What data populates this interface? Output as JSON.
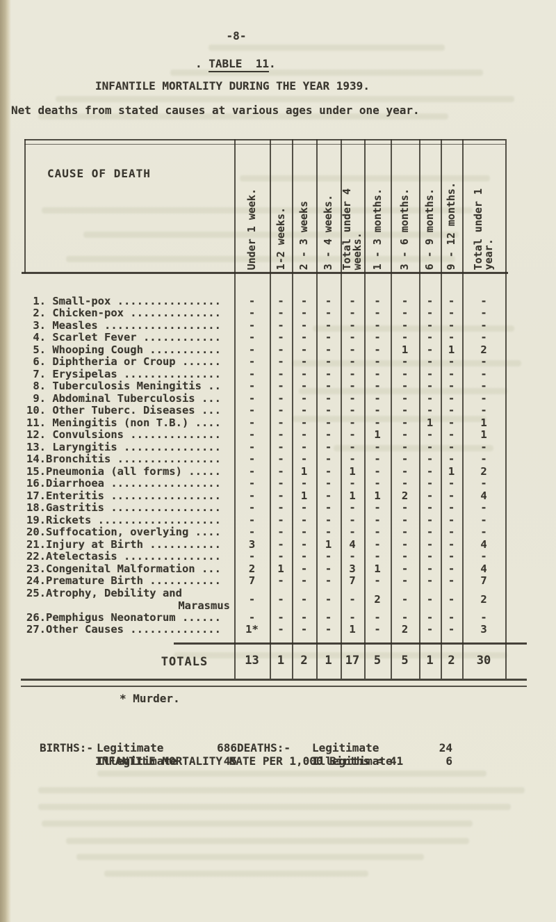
{
  "page": {
    "page_number": "-8-",
    "caption_pre": ". ",
    "caption_text": "TABLE  11",
    "caption_post": ".",
    "title": "INFANTILE MORTALITY DURING THE YEAR 1939.",
    "subtitle": "Net deaths from stated causes at various ages under one year."
  },
  "table": {
    "corner_header": "CAUSE OF DEATH",
    "columns": [
      "Under 1 week.",
      "1-2 weeks.",
      "2 - 3 weeks",
      "3 - 4 weeks.",
      "Total under 4\nweeks.",
      "1 - 3 months.",
      "3 - 6 months.",
      "6 - 9 months.",
      "9 - 12 months.",
      "Total under 1\nyear."
    ],
    "rows": [
      {
        "label": " 1. Small-pox",
        "values": [
          "-",
          "-",
          "-",
          "-",
          "-",
          "-",
          "-",
          "-",
          "-",
          "-"
        ]
      },
      {
        "label": " 2. Chicken-pox",
        "values": [
          "-",
          "-",
          "-",
          "-",
          "-",
          "-",
          "-",
          "-",
          "-",
          "-"
        ]
      },
      {
        "label": " 3. Measles",
        "values": [
          "-",
          "-",
          "-",
          "-",
          "-",
          "-",
          "-",
          "-",
          "-",
          "-"
        ]
      },
      {
        "label": " 4. Scarlet Fever",
        "values": [
          "-",
          "-",
          "-",
          "-",
          "-",
          "-",
          "-",
          "-",
          "-",
          "-"
        ]
      },
      {
        "label": " 5. Whooping Cough",
        "values": [
          "-",
          "-",
          "-",
          "-",
          "-",
          "-",
          "1",
          "-",
          "1",
          "2"
        ]
      },
      {
        "label": " 6. Diphtheria or Croup",
        "values": [
          "-",
          "-",
          "-",
          "-",
          "-",
          "-",
          "-",
          "-",
          "-",
          "-"
        ]
      },
      {
        "label": " 7. Erysipelas",
        "values": [
          "-",
          "-",
          "-",
          "-",
          "-",
          "-",
          "-",
          "-",
          "-",
          "-"
        ]
      },
      {
        "label": " 8. Tuberculosis Meningitis",
        "values": [
          "-",
          "-",
          "-",
          "-",
          "-",
          "-",
          "-",
          "-",
          "-",
          "-"
        ]
      },
      {
        "label": " 9. Abdominal Tuberculosis",
        "values": [
          "-",
          "-",
          "-",
          "-",
          "-",
          "-",
          "-",
          "-",
          "-",
          "-"
        ]
      },
      {
        "label": "10. Other Tuberc. Diseases",
        "values": [
          "-",
          "-",
          "-",
          "-",
          "-",
          "-",
          "-",
          "-",
          "-",
          "-"
        ]
      },
      {
        "label": "11. Meningitis (non T.B.)",
        "values": [
          "-",
          "-",
          "-",
          "-",
          "-",
          "-",
          "-",
          "1",
          "-",
          "1"
        ]
      },
      {
        "label": "12. Convulsions",
        "values": [
          "-",
          "-",
          "-",
          "-",
          "-",
          "1",
          "-",
          "-",
          "-",
          "1"
        ]
      },
      {
        "label": "13. Laryngitis",
        "values": [
          "-",
          "-",
          "-",
          "-",
          "-",
          "-",
          "-",
          "-",
          "-",
          "-"
        ]
      },
      {
        "label": "14.Bronchitis",
        "values": [
          "-",
          "-",
          "-",
          "-",
          "-",
          "-",
          "-",
          "-",
          "-",
          "-"
        ]
      },
      {
        "label": "15.Pneumonia (all forms)",
        "values": [
          "-",
          "-",
          "1",
          "-",
          "1",
          "-",
          "-",
          "-",
          "1",
          "2"
        ]
      },
      {
        "label": "16.Diarrhoea",
        "values": [
          "-",
          "-",
          "-",
          "-",
          "-",
          "-",
          "-",
          "-",
          "-",
          "-"
        ]
      },
      {
        "label": "17.Enteritis",
        "values": [
          "-",
          "-",
          "1",
          "-",
          "1",
          "1",
          "2",
          "-",
          "-",
          "4"
        ]
      },
      {
        "label": "18.Gastritis",
        "values": [
          "-",
          "-",
          "-",
          "-",
          "-",
          "-",
          "-",
          "-",
          "-",
          "-"
        ]
      },
      {
        "label": "19.Rickets",
        "values": [
          "-",
          "-",
          "-",
          "-",
          "-",
          "-",
          "-",
          "-",
          "-",
          "-"
        ]
      },
      {
        "label": "20.Suffocation, overlying",
        "values": [
          "-",
          "-",
          "-",
          "-",
          "-",
          "-",
          "-",
          "-",
          "-",
          "-"
        ]
      },
      {
        "label": "21.Injury at Birth",
        "values": [
          "3",
          "-",
          "-",
          "1",
          "4",
          "-",
          "-",
          "-",
          "-",
          "4"
        ]
      },
      {
        "label": "22.Atelectasis",
        "values": [
          "-",
          "-",
          "-",
          "-",
          "-",
          "-",
          "-",
          "-",
          "-",
          "-"
        ]
      },
      {
        "label": "23.Congenital Malformation",
        "values": [
          "2",
          "1",
          "-",
          "-",
          "3",
          "1",
          "-",
          "-",
          "-",
          "4"
        ]
      },
      {
        "label": "24.Premature Birth",
        "values": [
          "7",
          "-",
          "-",
          "-",
          "7",
          "-",
          "-",
          "-",
          "-",
          "7"
        ]
      },
      {
        "label": "25.Atrophy, Debility and",
        "label2": "Marasmus",
        "dots": false,
        "values": [
          "-",
          "-",
          "-",
          "-",
          "-",
          "2",
          "-",
          "-",
          "-",
          "2"
        ]
      },
      {
        "label": "26.Pemphigus Neonatorum",
        "values": [
          "-",
          "-",
          "-",
          "-",
          "-",
          "-",
          "-",
          "-",
          "-",
          "-"
        ]
      },
      {
        "label": "27.Other Causes",
        "values": [
          "1*",
          "-",
          "-",
          "-",
          "1",
          "-",
          "2",
          "-",
          "-",
          "3"
        ]
      }
    ],
    "totals_label": "TOTALS",
    "totals": [
      "13",
      "1",
      "2",
      "1",
      "17",
      "5",
      "5",
      "1",
      "2",
      "30"
    ]
  },
  "footnote": "* Murder.",
  "births": {
    "heading": "BIRTHS:-",
    "items": [
      {
        "label": "Legitimate",
        "value": "686"
      },
      {
        "label": "Illegitimate",
        "value": "45"
      }
    ]
  },
  "deaths": {
    "heading": "DEATHS:-",
    "items": [
      {
        "label": "Legitimate",
        "value": "24"
      },
      {
        "label": "Illegitimate",
        "value": "6"
      }
    ]
  },
  "rate_line": "INFANTILE MORTALITY RATE PER 1,000 Births = 41"
}
